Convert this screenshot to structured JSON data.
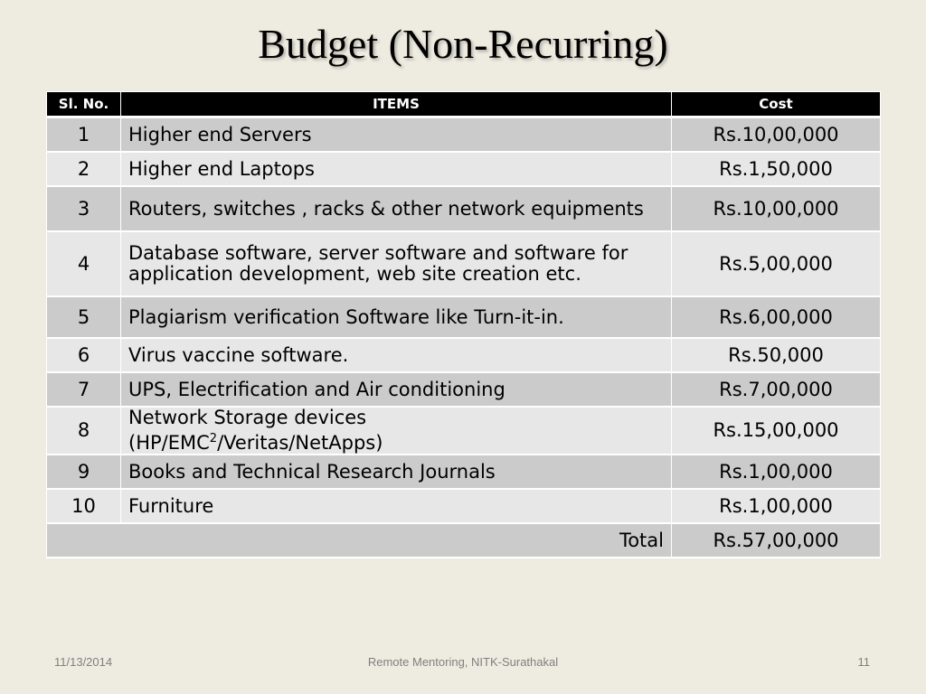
{
  "title": "Budget (Non-Recurring)",
  "table": {
    "headers": {
      "sl": "Sl. No.",
      "items": "ITEMS",
      "cost": "Cost"
    },
    "rows": [
      {
        "sl": "1",
        "item": "Higher end Servers",
        "cost": "Rs.10,00,000"
      },
      {
        "sl": "2",
        "item": "Higher end Laptops",
        "cost": "Rs.1,50,000"
      },
      {
        "sl": "3",
        "item": "Routers, switches , racks & other network equipments",
        "cost": "Rs.10,00,000"
      },
      {
        "sl": "4",
        "item": "Database software, server software and software for application development, web site creation etc.",
        "cost": "Rs.5,00,000"
      },
      {
        "sl": "5",
        "item": "Plagiarism verification Software like Turn-it-in.",
        "cost": "Rs.6,00,000"
      },
      {
        "sl": "6",
        "item": "Virus vaccine software.",
        "cost": "Rs.50,000"
      },
      {
        "sl": "7",
        "item": "UPS, Electrification and Air conditioning",
        "cost": "Rs.7,00,000"
      },
      {
        "sl": "8",
        "item_line1": "Network Storage devices",
        "item_pre": "(HP/EMC",
        "item_sup": "2",
        "item_post": "/Veritas/NetApps)",
        "cost": "Rs.15,00,000"
      },
      {
        "sl": "9",
        "item": "Books and Technical Research Journals",
        "cost": "Rs.1,00,000"
      },
      {
        "sl": "10",
        "item": "Furniture",
        "cost": "Rs.1,00,000"
      }
    ],
    "total": {
      "label": "Total",
      "cost": "Rs.57,00,000"
    }
  },
  "footer": {
    "date": "11/13/2014",
    "center": "Remote Mentoring, NITK-Surathakal",
    "page": "11"
  }
}
